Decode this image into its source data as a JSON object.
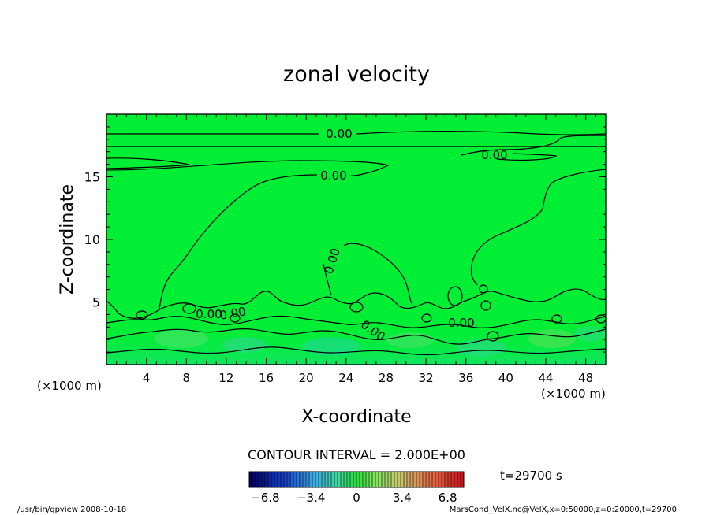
{
  "chart_data": {
    "type": "heatmap",
    "title": "zonal velocity",
    "xlabel": "X-coordinate",
    "ylabel": "Z-coordinate",
    "x_unit_left": "(×1000 m)",
    "x_unit_right": "(×1000 m)",
    "xlim": [
      0,
      50
    ],
    "ylim": [
      0,
      20
    ],
    "x_ticks": [
      4,
      8,
      12,
      16,
      20,
      24,
      28,
      32,
      36,
      40,
      44,
      48
    ],
    "y_ticks": [
      5,
      10,
      15
    ],
    "contour_interval_text": "CONTOUR INTERVAL = 2.000E+00",
    "contour_labels": [
      "0.00",
      "0.00",
      "0.00",
      "0.00",
      "0.00",
      "0.00",
      "0.00",
      "0.00"
    ],
    "colorbar": {
      "ticks": [
        "−6.8",
        "−3.4",
        "0",
        "3.4",
        "6.8"
      ],
      "range": [
        -8.0,
        8.0
      ]
    },
    "time_text": "t=29700 s",
    "footer_left": "/usr/bin/gpview   2008-10-18",
    "footer_right": "MarsCond_VelX.nc@VelX,x=0:50000,z=0:20000,t=29700",
    "colors": {
      "field_background": "#00ee33",
      "contour_line": "#000000",
      "weak_positive": "#44ee66",
      "weak_negative": "#22dd88"
    }
  }
}
